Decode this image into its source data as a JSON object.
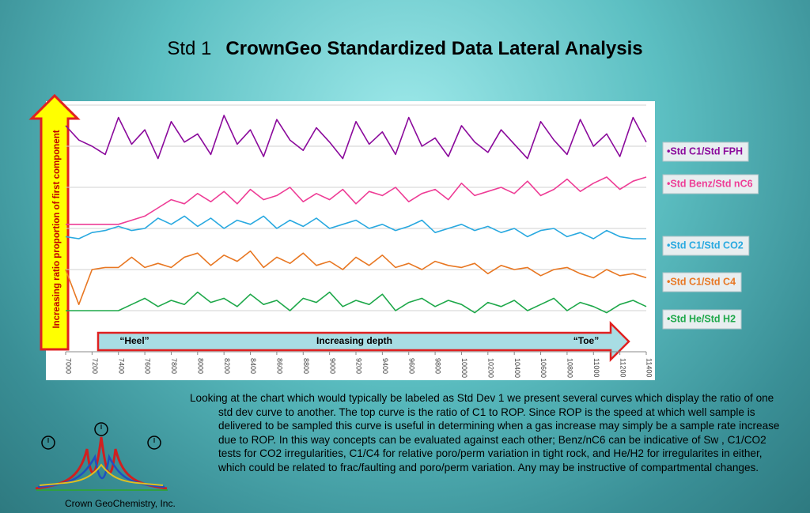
{
  "slide_title": {
    "prefix": "Std 1",
    "main": "CrownGeo Standardized Data Lateral Analysis"
  },
  "chart_data": {
    "type": "line",
    "y_arrow_label": "Increasing ratio proportion of first component",
    "x_arrow_labels": [
      "“Heel”",
      "Increasing depth",
      "“Toe”"
    ],
    "x": [
      7000,
      7100,
      7200,
      7300,
      7400,
      7500,
      7600,
      7700,
      7800,
      7900,
      8000,
      8100,
      8200,
      8300,
      8400,
      8500,
      8600,
      8700,
      8800,
      8900,
      9000,
      9100,
      9200,
      9300,
      9400,
      9500,
      9600,
      9700,
      9800,
      9900,
      10000,
      10100,
      10200,
      10300,
      10400,
      10500,
      10600,
      10700,
      10800,
      10900,
      11000,
      11100,
      11200,
      11300,
      11400
    ],
    "xlim": [
      7000,
      11400
    ],
    "xticks": [
      7000,
      7200,
      7400,
      7600,
      7800,
      8000,
      8200,
      8400,
      8600,
      8800,
      9000,
      9200,
      9400,
      9600,
      9800,
      10000,
      10200,
      10400,
      10600,
      10800,
      11000,
      11200,
      11400
    ],
    "ylim": [
      0,
      120
    ],
    "yticks": [
      0,
      20,
      40,
      60,
      80,
      100,
      120
    ],
    "grid": true,
    "series": [
      {
        "name": "•Std C1/Std FPH",
        "color": "#8b0a9c",
        "values": [
          110,
          103,
          100,
          96,
          114,
          101,
          108,
          94,
          112,
          102,
          106,
          96,
          115,
          101,
          108,
          95,
          113,
          103,
          98,
          109,
          102,
          94,
          112,
          101,
          107,
          96,
          114,
          100,
          104,
          95,
          110,
          102,
          97,
          108,
          101,
          94,
          112,
          103,
          96,
          113,
          100,
          106,
          95,
          114,
          102
        ]
      },
      {
        "name": "•Std Benz/Std nC6",
        "color": "#ee3d96",
        "values": [
          62,
          62,
          62,
          62,
          62,
          64,
          66,
          70,
          74,
          72,
          77,
          73,
          78,
          72,
          79,
          74,
          76,
          80,
          73,
          77,
          74,
          79,
          72,
          78,
          76,
          80,
          73,
          77,
          79,
          74,
          82,
          76,
          78,
          80,
          77,
          83,
          76,
          79,
          84,
          78,
          82,
          85,
          79,
          83,
          85
        ]
      },
      {
        "name": "•Std C1/Std CO2",
        "color": "#29a9e0",
        "values": [
          56,
          55,
          58,
          59,
          61,
          59,
          60,
          65,
          62,
          66,
          61,
          65,
          60,
          64,
          62,
          66,
          60,
          64,
          61,
          65,
          60,
          62,
          64,
          60,
          62,
          59,
          61,
          64,
          58,
          60,
          62,
          59,
          61,
          58,
          60,
          56,
          59,
          60,
          56,
          58,
          55,
          59,
          56,
          55,
          55
        ]
      },
      {
        "name": "•Std C1/Std C4",
        "color": "#e87722",
        "values": [
          40,
          23,
          40,
          41,
          41,
          46,
          41,
          43,
          41,
          46,
          48,
          42,
          47,
          44,
          49,
          41,
          46,
          43,
          48,
          42,
          44,
          40,
          46,
          42,
          47,
          41,
          43,
          40,
          44,
          42,
          41,
          43,
          38,
          42,
          40,
          41,
          37,
          40,
          41,
          38,
          36,
          40,
          37,
          38,
          36
        ]
      },
      {
        "name": "•Std He/Std H2",
        "color": "#1ea84a",
        "values": [
          20,
          20,
          20,
          20,
          20,
          23,
          26,
          22,
          25,
          23,
          29,
          24,
          26,
          22,
          28,
          23,
          25,
          20,
          26,
          24,
          29,
          22,
          25,
          23,
          28,
          20,
          24,
          26,
          22,
          25,
          23,
          19,
          24,
          22,
          25,
          20,
          23,
          26,
          20,
          24,
          22,
          19,
          23,
          25,
          22
        ]
      }
    ]
  },
  "description": "Looking at the chart which would typically be labeled as Std Dev 1 we present several curves which display the ratio of one std dev curve to another. The top curve is the ratio of C1 to ROP. Since ROP  is the speed at which well sample is delivered to be sampled this curve is useful  in determining when a gas increase may simply be a sample rate increase due to ROP.  In this way concepts can be evaluated against each other; Benz/nC6 can be indicative of Sw , C1/CO2 tests for CO2  irregularities, C1/C4 for relative poro/perm variation in tight rock, and He/H2 for irregularites in either, which could be related to frac/faulting and poro/perm variation.  Any may be instructive of compartmental changes.",
  "company": "Crown GeoChemistry, Inc."
}
